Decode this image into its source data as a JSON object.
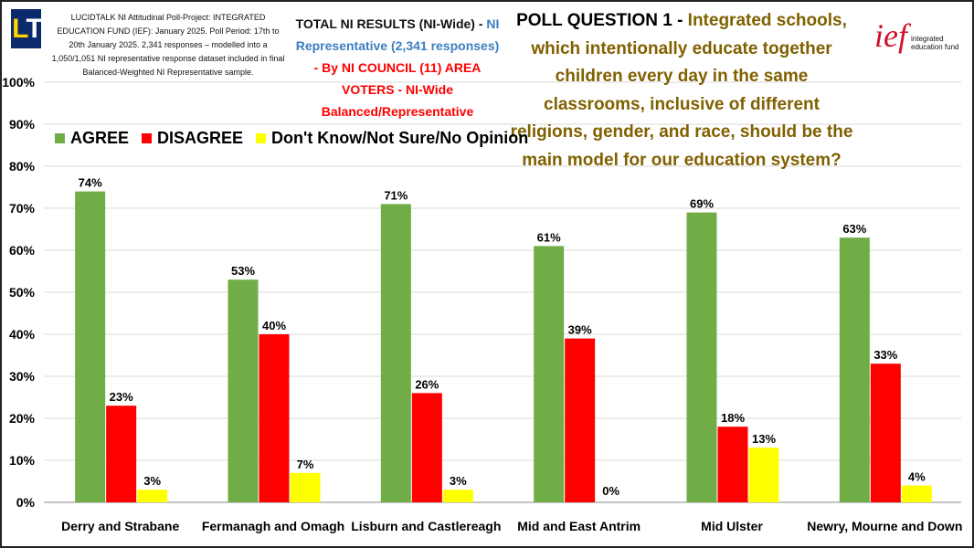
{
  "header": {
    "logo_text": "LT",
    "note": "LUCIDTALK NI Attitudinal Poll-Project: INTEGRATED EDUCATION FUND (IEF): January 2025. Poll Period: 17th to 20th January 2025. 2,341 responses – modelled into a 1,050/1,051 NI representative response dataset included in final Balanced-Weighted NI Representative sample.",
    "subtitle_black": "TOTAL NI RESULTS (NI-Wide) - ",
    "subtitle_blue": "NI Representative (2,341 responses)",
    "subtitle_red": " - By NI COUNCIL (11) AREA VOTERS - NI-Wide Balanced/Representative",
    "question_lead": "POLL QUESTION 1 - ",
    "question_text": "Integrated schools, which intentionally educate together children every day in the same classrooms, inclusive of different religions, gender, and race, should be the main model for our education system?",
    "ief_logo": "ief",
    "ief_logo_text": "integrated education fund"
  },
  "colors": {
    "agree": "#70ad47",
    "disagree": "#ff0000",
    "dont_know": "#ffff00",
    "question": "#806000",
    "blue": "#3b7fbf"
  },
  "chart_data": {
    "type": "bar",
    "categories": [
      "Derry and Strabane",
      "Fermanagh and Omagh",
      "Lisburn and Castlereagh",
      "Mid and East Antrim",
      "Mid Ulster",
      "Newry, Mourne and Down"
    ],
    "series": [
      {
        "name": "AGREE",
        "values": [
          74,
          53,
          71,
          61,
          69,
          63
        ]
      },
      {
        "name": "DISAGREE",
        "values": [
          23,
          40,
          26,
          39,
          18,
          33
        ]
      },
      {
        "name": "Don't Know/Not Sure/No Opinion",
        "values": [
          3,
          7,
          3,
          0,
          13,
          4
        ]
      }
    ],
    "ylim": [
      0,
      100
    ],
    "yticks": [
      "0%",
      "10%",
      "20%",
      "30%",
      "40%",
      "50%",
      "60%",
      "70%",
      "80%",
      "90%",
      "100%"
    ],
    "grid": true,
    "legend": "top-left",
    "data_label_suffix": "%"
  }
}
